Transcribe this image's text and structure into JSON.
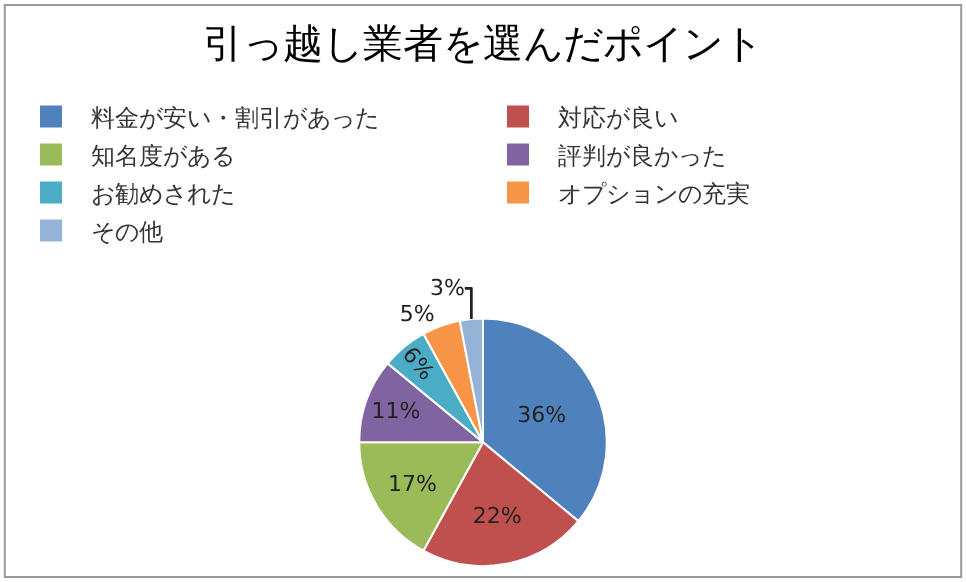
{
  "chart_data": {
    "type": "pie",
    "title": "引っ越し業者を選んだポイント",
    "categories": [
      "料金が安い・割引があった",
      "対応が良い",
      "知名度がある",
      "評判が良かった",
      "お勧めされた",
      "オプションの充実",
      "その他"
    ],
    "values": [
      36,
      22,
      17,
      11,
      6,
      5,
      3
    ],
    "colors": [
      "#4f81bd",
      "#c0504d",
      "#9bbb59",
      "#8064a2",
      "#4bacc6",
      "#f79646",
      "#95b3d7"
    ],
    "value_labels": [
      "36%",
      "22%",
      "17%",
      "11%",
      "6%",
      "5%",
      "3%"
    ],
    "legend": "top"
  }
}
